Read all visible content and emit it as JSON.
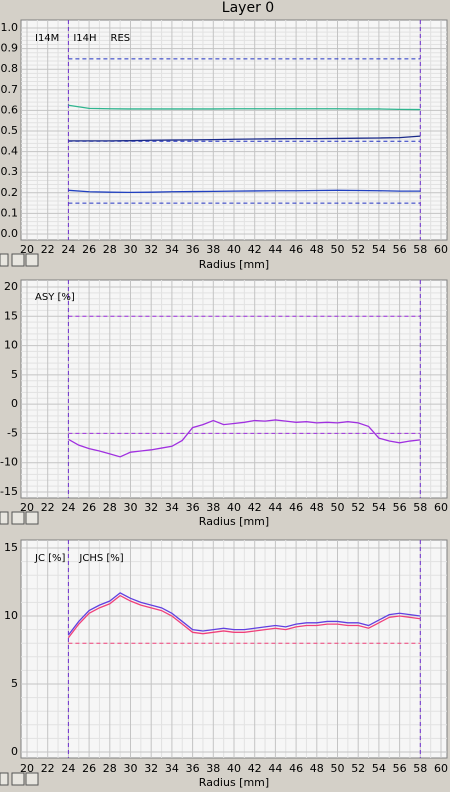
{
  "header": {
    "title": "Layer 0"
  },
  "chart_data": [
    {
      "type": "line",
      "x_label": "Radius [mm]",
      "x": [
        24,
        26,
        28,
        30,
        32,
        34,
        36,
        38,
        40,
        42,
        44,
        46,
        48,
        50,
        52,
        54,
        56,
        58
      ],
      "series": [
        {
          "name": "I14M",
          "color": "#2fb58f",
          "values": [
            0.625,
            0.61,
            0.608,
            0.607,
            0.607,
            0.607,
            0.607,
            0.607,
            0.608,
            0.608,
            0.608,
            0.608,
            0.608,
            0.608,
            0.607,
            0.607,
            0.605,
            0.604
          ]
        },
        {
          "name": "I14H",
          "color": "#1a2a8a",
          "values": [
            0.452,
            0.452,
            0.452,
            0.453,
            0.455,
            0.456,
            0.457,
            0.458,
            0.46,
            0.461,
            0.462,
            0.463,
            0.463,
            0.464,
            0.465,
            0.466,
            0.468,
            0.475
          ]
        },
        {
          "name": "RES",
          "color": "#2040c0",
          "values": [
            0.212,
            0.205,
            0.203,
            0.202,
            0.203,
            0.205,
            0.206,
            0.207,
            0.208,
            0.209,
            0.21,
            0.21,
            0.211,
            0.212,
            0.211,
            0.21,
            0.208,
            0.208
          ]
        }
      ],
      "xlim": [
        20,
        60
      ],
      "xticks": [
        20,
        22,
        24,
        26,
        28,
        30,
        32,
        34,
        36,
        38,
        40,
        42,
        44,
        46,
        48,
        50,
        52,
        54,
        56,
        58,
        60
      ],
      "ylim": [
        0,
        1
      ],
      "yticks": [
        {
          "value": 0,
          "label": "0.0"
        },
        0.1,
        0.2,
        0.3,
        0.4,
        0.5,
        0.6,
        0.7,
        0.8,
        0.9,
        {
          "value": 1,
          "label": "1.0"
        }
      ],
      "grid": true,
      "limit_lines": [
        0.85,
        0.45,
        0.15
      ],
      "limit_color": "#2030c0",
      "x_limits": [
        24,
        58
      ],
      "x_limit_color": "#7030d0"
    },
    {
      "type": "line",
      "x_label": "Radius [mm]",
      "x": [
        24,
        25,
        26,
        27,
        28,
        29,
        30,
        31,
        32,
        33,
        34,
        35,
        36,
        37,
        38,
        39,
        40,
        41,
        42,
        43,
        44,
        45,
        46,
        47,
        48,
        49,
        50,
        51,
        52,
        53,
        54,
        55,
        56,
        57,
        58
      ],
      "series": [
        {
          "name": "ASY [%]",
          "color": "#a030e0",
          "values": [
            -6,
            -7,
            -7.6,
            -8,
            -8.5,
            -9,
            -8.2,
            -8,
            -7.8,
            -7.5,
            -7.2,
            -6.2,
            -4,
            -3.5,
            -2.8,
            -3.5,
            -3.3,
            -3.1,
            -2.8,
            -2.9,
            -2.7,
            -2.9,
            -3.1,
            -3,
            -3.2,
            -3.1,
            -3.2,
            -3,
            -3.2,
            -3.8,
            -5.8,
            -6.3,
            -6.6,
            -6.3,
            -6.1
          ]
        }
      ],
      "xlim": [
        20,
        60
      ],
      "xticks": [
        20,
        22,
        24,
        26,
        28,
        30,
        32,
        34,
        36,
        38,
        40,
        42,
        44,
        46,
        48,
        50,
        52,
        54,
        56,
        58,
        60
      ],
      "ylim": [
        -15,
        20
      ],
      "yticks": [
        -15,
        -10,
        -5,
        0,
        5,
        10,
        15,
        20
      ],
      "grid": true,
      "limit_lines": [
        15,
        -5
      ],
      "limit_color": "#a030e0",
      "x_limits": [
        24,
        58
      ],
      "x_limit_color": "#7030d0"
    },
    {
      "type": "line",
      "x_label": "Radius [mm]",
      "x": [
        24,
        25,
        26,
        27,
        28,
        29,
        30,
        31,
        32,
        33,
        34,
        35,
        36,
        37,
        38,
        39,
        40,
        41,
        42,
        43,
        44,
        45,
        46,
        47,
        48,
        49,
        50,
        51,
        52,
        53,
        54,
        55,
        56,
        57,
        58
      ],
      "series": [
        {
          "name": "JC [%]",
          "color": "#f0407a",
          "values": [
            8.4,
            9.4,
            10.2,
            10.6,
            10.9,
            11.5,
            11.1,
            10.8,
            10.6,
            10.4,
            10.0,
            9.4,
            8.8,
            8.7,
            8.8,
            8.9,
            8.8,
            8.8,
            8.9,
            9.0,
            9.1,
            9.0,
            9.2,
            9.3,
            9.3,
            9.4,
            9.4,
            9.3,
            9.3,
            9.1,
            9.5,
            9.9,
            10.0,
            9.9,
            9.8
          ]
        },
        {
          "name": "JCHS [%]",
          "color": "#6040e0",
          "values": [
            8.6,
            9.6,
            10.4,
            10.8,
            11.1,
            11.7,
            11.3,
            11.0,
            10.8,
            10.6,
            10.2,
            9.6,
            9.0,
            8.9,
            9.0,
            9.1,
            9.0,
            9.0,
            9.1,
            9.2,
            9.3,
            9.2,
            9.4,
            9.5,
            9.5,
            9.6,
            9.6,
            9.5,
            9.5,
            9.3,
            9.7,
            10.1,
            10.2,
            10.1,
            10.0
          ]
        }
      ],
      "xlim": [
        20,
        60
      ],
      "xticks": [
        20,
        22,
        24,
        26,
        28,
        30,
        32,
        34,
        36,
        38,
        40,
        42,
        44,
        46,
        48,
        50,
        52,
        54,
        56,
        58,
        60
      ],
      "ylim": [
        0,
        15
      ],
      "yticks": [
        0,
        5,
        10,
        15
      ],
      "grid": true,
      "limit_lines": [
        8
      ],
      "limit_color": "#f0407a",
      "x_limits": [
        24,
        58
      ],
      "x_limit_color": "#7030d0"
    }
  ]
}
